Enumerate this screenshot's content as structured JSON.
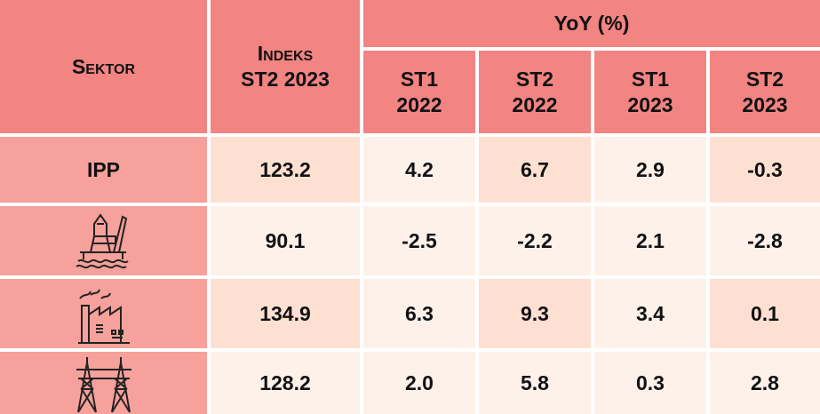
{
  "table": {
    "header": {
      "sector": "Sektor",
      "index": [
        "Indeks",
        "ST2 2023"
      ],
      "yoy": "YoY (%)",
      "periods": [
        [
          "ST1",
          "2022"
        ],
        [
          "ST2",
          "2022"
        ],
        [
          "ST1",
          "2023"
        ],
        [
          "ST2",
          "2023"
        ]
      ]
    },
    "sector_label": "IPP",
    "rows": [
      [
        "123.2",
        "4.2",
        "6.7",
        "2.9",
        "-0.3"
      ],
      [
        "90.1",
        "-2.5",
        "-2.2",
        "2.1",
        "-2.8"
      ],
      [
        "134.9",
        "6.3",
        "9.3",
        "3.4",
        "0.1"
      ],
      [
        "128.2",
        "2.0",
        "5.8",
        "0.3",
        "2.8"
      ]
    ]
  }
}
